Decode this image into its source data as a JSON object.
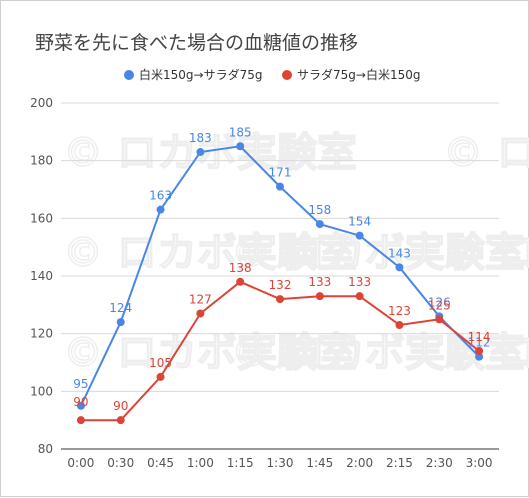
{
  "chart_data": {
    "type": "line",
    "title": "野菜を先に食べた場合の血糖値の推移",
    "xlabel": "",
    "ylabel": "",
    "categories": [
      "0:00",
      "0:30",
      "0:45",
      "1:00",
      "1:15",
      "1:30",
      "1:45",
      "2:00",
      "2:15",
      "2:30",
      "3:00"
    ],
    "series": [
      {
        "name": "白米150g→サラダ75g",
        "color": "#4a86e8",
        "values": [
          95,
          124,
          163,
          183,
          185,
          171,
          158,
          154,
          143,
          126,
          112
        ]
      },
      {
        "name": "サラダ75g→白米150g",
        "color": "#db4437",
        "values": [
          90,
          90,
          105,
          127,
          138,
          132,
          133,
          133,
          123,
          125,
          114
        ]
      }
    ],
    "ylim": [
      80,
      200
    ],
    "yticks": [
      80,
      100,
      120,
      140,
      160,
      180,
      200
    ],
    "grid": true,
    "legend_position": "top",
    "watermark": "© ロカボ実験室"
  }
}
